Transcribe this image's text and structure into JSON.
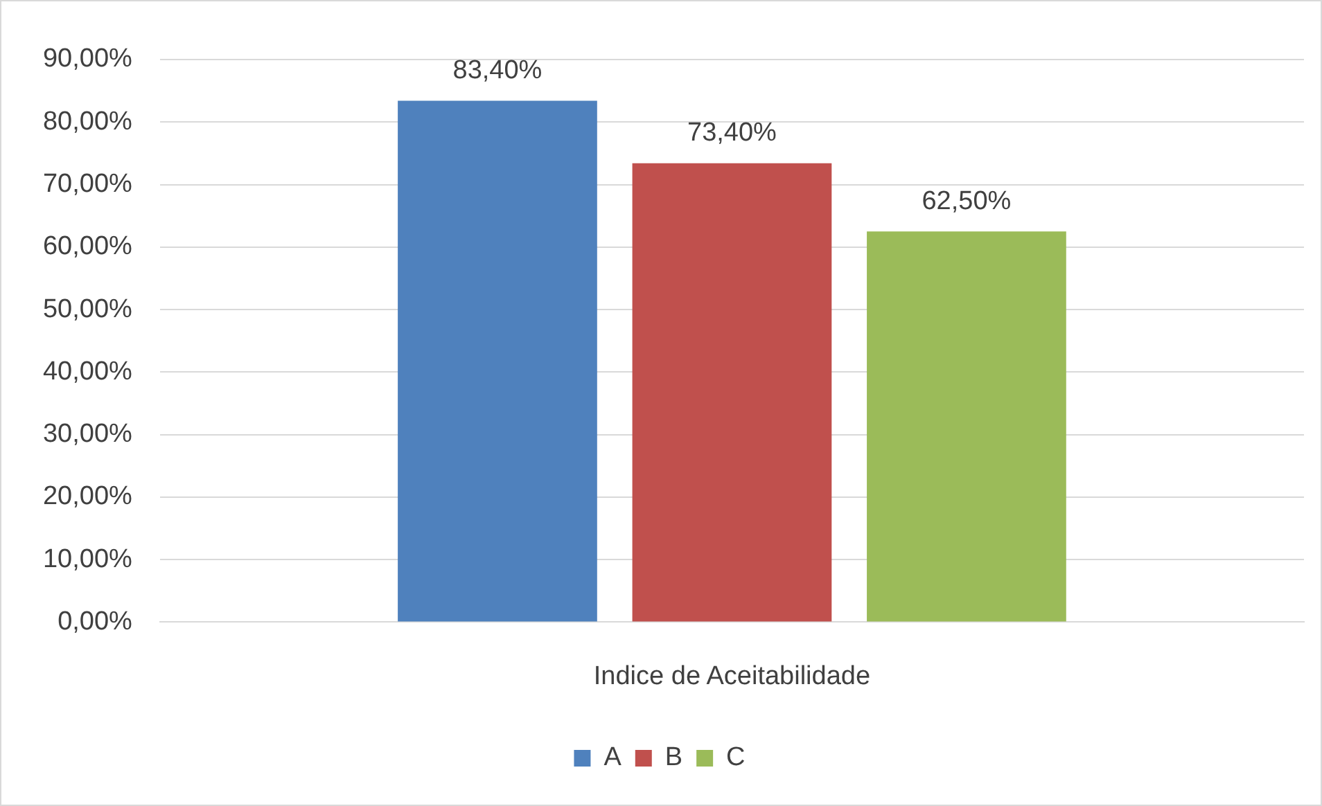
{
  "chart_data": {
    "type": "bar",
    "categories": [
      "Indice de Aceitabilidade"
    ],
    "series": [
      {
        "name": "A",
        "color": "#4f81bd",
        "values": [
          83.4
        ],
        "value_labels": [
          "83,40%"
        ]
      },
      {
        "name": "B",
        "color": "#c0504d",
        "values": [
          73.4
        ],
        "value_labels": [
          "73,40%"
        ]
      },
      {
        "name": "C",
        "color": "#9bbb59",
        "values": [
          62.5
        ],
        "value_labels": [
          "62,50%"
        ]
      }
    ],
    "ylim": [
      0,
      90
    ],
    "yticks": [
      {
        "value": 0,
        "label": "0,00%"
      },
      {
        "value": 10,
        "label": "10,00%"
      },
      {
        "value": 20,
        "label": "20,00%"
      },
      {
        "value": 30,
        "label": "30,00%"
      },
      {
        "value": 40,
        "label": "40,00%"
      },
      {
        "value": 50,
        "label": "50,00%"
      },
      {
        "value": 60,
        "label": "60,00%"
      },
      {
        "value": 70,
        "label": "70,00%"
      },
      {
        "value": 80,
        "label": "80,00%"
      },
      {
        "value": 90,
        "label": "90,00%"
      }
    ],
    "grid": "y",
    "legend": "bottom"
  }
}
